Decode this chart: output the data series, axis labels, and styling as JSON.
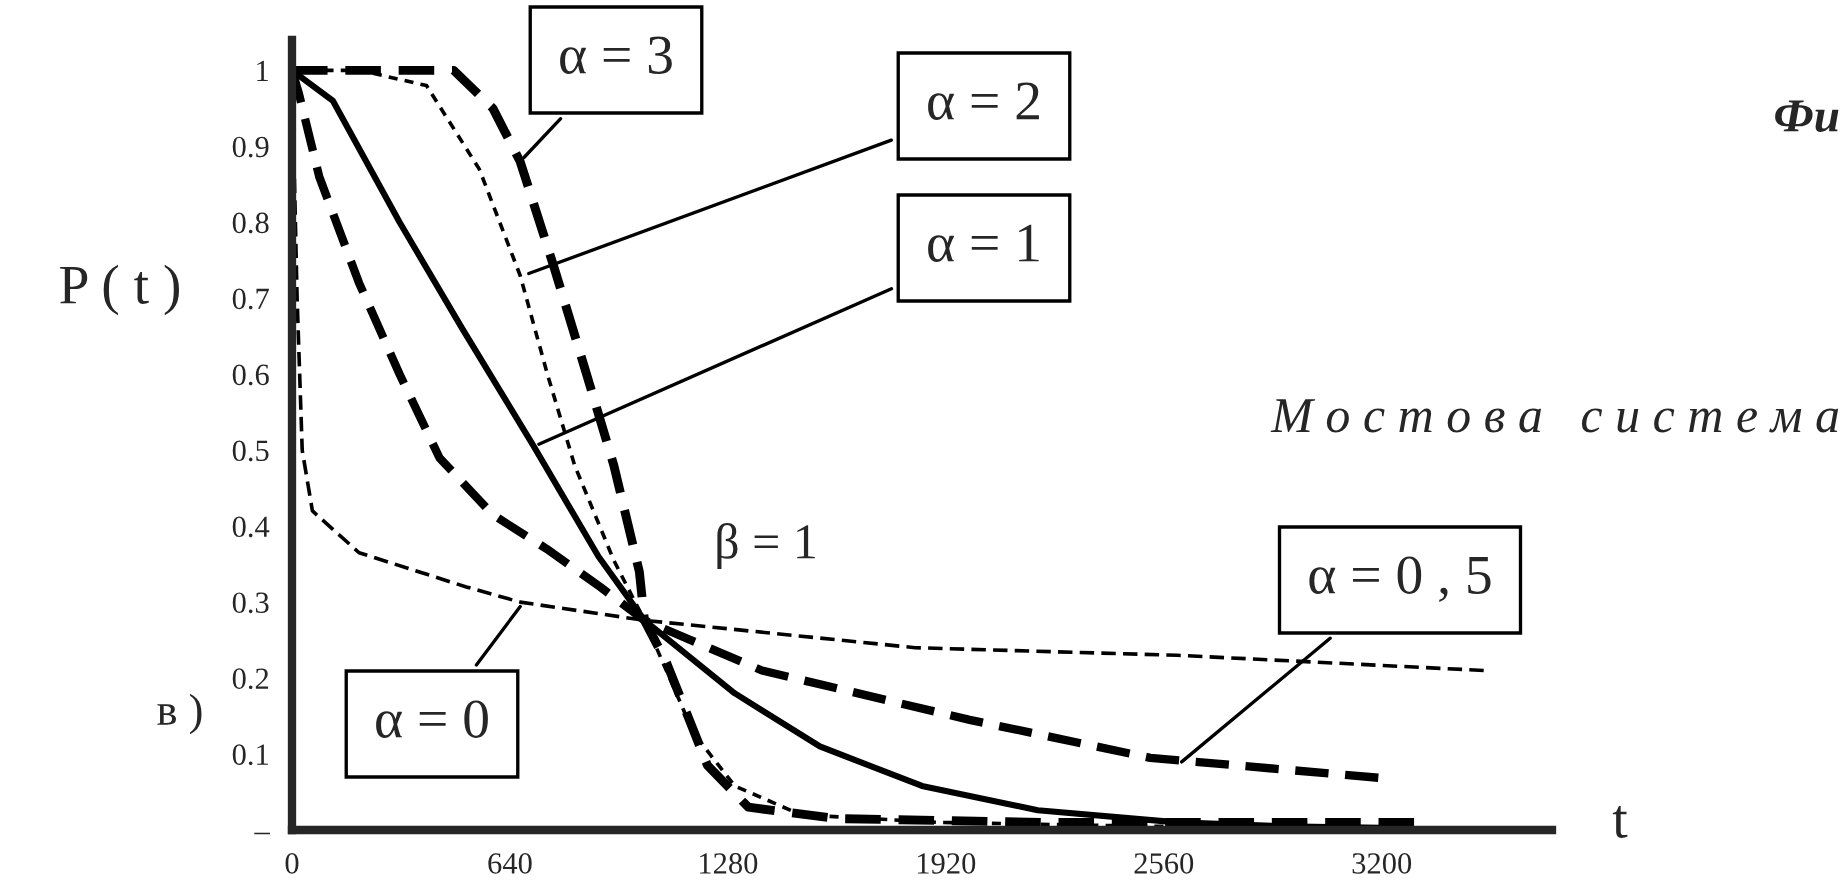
{
  "chart_data": {
    "type": "line",
    "xlabel": "t",
    "ylabel": "P ( t )",
    "xlim": [
      0,
      3700
    ],
    "ylim": [
      0,
      1.04
    ],
    "xticks": [
      0,
      640,
      1280,
      1920,
      2560,
      3200
    ],
    "yticks": [
      {
        "value": 0,
        "label": "–"
      },
      0.1,
      0.2,
      0.3,
      0.4,
      0.5,
      0.6,
      0.7,
      0.8,
      0.9,
      1
    ],
    "grid": false,
    "series": [
      {
        "color": "#000000",
        "line_style": "dashed",
        "x": [
          0,
          200,
          475,
          590,
          670,
          770,
          865,
          945,
          1020,
          1035,
          1100,
          1220,
          1340,
          1600,
          2200,
          2800,
          3300
        ],
        "values": [
          1.0,
          1.0,
          1.0,
          0.95,
          0.88,
          0.74,
          0.6,
          0.48,
          0.34,
          0.276,
          0.22,
          0.085,
          0.03,
          0.015,
          0.01,
          0.01,
          0.01
        ]
      },
      {
        "color": "#000000",
        "line_style": "dotted",
        "x": [
          0,
          200,
          395,
          550,
          670,
          750,
          830,
          945,
          1035,
          1180,
          1300,
          1495,
          1900,
          2500,
          3000
        ],
        "values": [
          1.0,
          1.0,
          0.98,
          0.87,
          0.73,
          0.6,
          0.48,
          0.355,
          0.276,
          0.127,
          0.058,
          0.02,
          0.01,
          0.005,
          0.005
        ]
      },
      {
        "color": "#000000",
        "line_style": "solid",
        "x": [
          0,
          120,
          316,
          500,
          710,
          900,
          1035,
          1300,
          1550,
          1850,
          2190,
          2600,
          2900,
          3200
        ],
        "values": [
          1.0,
          0.96,
          0.8,
          0.66,
          0.505,
          0.36,
          0.276,
          0.18,
          0.11,
          0.058,
          0.026,
          0.01,
          0.005,
          0.003
        ]
      },
      {
        "color": "#000000",
        "line_style": "dashed",
        "x": [
          0,
          20,
          80,
          197,
          316,
          433,
          590,
          748,
          905,
          1035,
          1380,
          1990,
          2520,
          3210
        ],
        "values": [
          1.0,
          0.97,
          0.86,
          0.72,
          0.6,
          0.49,
          0.415,
          0.37,
          0.32,
          0.276,
          0.21,
          0.145,
          0.095,
          0.068
        ]
      },
      {
        "color": "#000000",
        "line_style": "dashed",
        "x": [
          0,
          15,
          30,
          60,
          197,
          512,
          670,
          1035,
          1830,
          2600,
          3500
        ],
        "values": [
          1.0,
          0.7,
          0.5,
          0.42,
          0.365,
          0.32,
          0.3,
          0.276,
          0.24,
          0.23,
          0.21
        ]
      }
    ],
    "annotations": [
      {
        "text": "α = 3",
        "x": 670,
        "y": 0.88
      },
      {
        "text": "α = 2",
        "x": 680,
        "y": 0.73
      },
      {
        "text": "α = 1",
        "x": 710,
        "y": 0.505
      },
      {
        "text": "α = 0",
        "x": 680,
        "y": 0.3
      },
      {
        "text": "α = 0 , 5",
        "x": 2600,
        "y": 0.085
      },
      "β = 1",
      "в )",
      "М о с т о в а   с и с т е м а",
      "Фи"
    ]
  }
}
